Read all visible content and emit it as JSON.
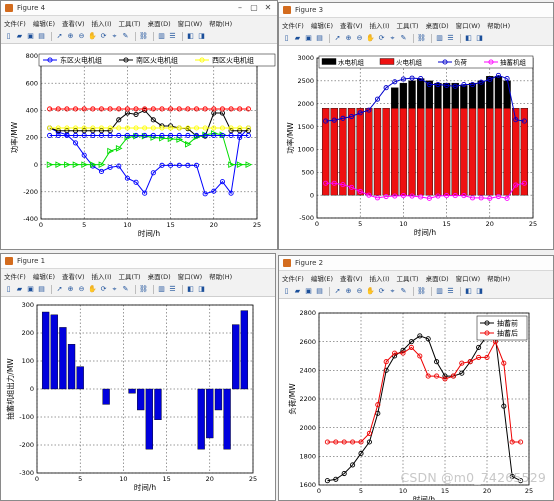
{
  "toolbar_icons": [
    "new-icon",
    "open-icon",
    "save-icon",
    "print-icon",
    "sep",
    "pointer-icon",
    "zoom-in-icon",
    "zoom-out-icon",
    "pan-icon",
    "rotate-icon",
    "datacursor-icon",
    "brush-icon",
    "sep",
    "link-icon",
    "sep",
    "colorbar-icon",
    "legend-icon",
    "sep",
    "hide-tools-icon",
    "show-tools-icon"
  ],
  "toolbar_glyphs": {
    "new-icon": "▯",
    "open-icon": "▰",
    "save-icon": "▣",
    "print-icon": "▤",
    "pointer-icon": "➚",
    "zoom-in-icon": "⊕",
    "zoom-out-icon": "⊖",
    "pan-icon": "✋",
    "rotate-icon": "⟳",
    "datacursor-icon": "⌖",
    "brush-icon": "✎",
    "link-icon": "⛓",
    "colorbar-icon": "▥",
    "legend-icon": "☰",
    "hide-tools-icon": "◧",
    "show-tools-icon": "◨"
  },
  "menu": [
    "文件(F)",
    "编辑(E)",
    "查看(V)",
    "插入(I)",
    "工具(T)",
    "桌面(D)",
    "窗口(W)",
    "帮助(H)"
  ],
  "watermark": "CSDN @m0_74265529",
  "windows": {
    "fig4": {
      "title": "Figure 4"
    },
    "fig3": {
      "title": "Figure 3"
    },
    "fig1": {
      "title": "Figure 1"
    },
    "fig2": {
      "title": "Figure 2"
    }
  },
  "chart_data": [
    {
      "id": "fig4",
      "type": "line",
      "xlabel": "时间/h",
      "ylabel": "功率/MW",
      "xlim": [
        0,
        25
      ],
      "ylim": [
        -400,
        800
      ],
      "xticks": [
        0,
        5,
        10,
        15,
        20,
        25
      ],
      "yticks": [
        -400,
        -200,
        0,
        200,
        400,
        600,
        800
      ],
      "grid": true,
      "legend": {
        "placement": "top",
        "orientation": "horizontal"
      },
      "series": [
        {
          "name": "东区火电机组",
          "color": "#0000ff",
          "marker": "circle",
          "x": [
            1,
            2,
            3,
            4,
            5,
            6,
            7,
            8,
            9,
            10,
            11,
            12,
            13,
            14,
            15,
            16,
            17,
            18,
            19,
            20,
            21,
            22,
            23,
            24
          ],
          "y": [
            270,
            240,
            220,
            160,
            70,
            -10,
            -50,
            -20,
            -10,
            -100,
            -130,
            -210,
            -60,
            -5,
            -5,
            -5,
            -5,
            -5,
            -215,
            -195,
            -125,
            -210,
            200,
            270
          ]
        },
        {
          "name": "南区火电机组",
          "color": "#000000",
          "marker": "circle",
          "x": [
            1,
            2,
            3,
            4,
            5,
            6,
            7,
            8,
            9,
            10,
            11,
            12,
            13,
            14,
            15,
            16,
            17,
            18,
            19,
            20,
            21,
            22,
            23,
            24
          ],
          "y": [
            270,
            250,
            250,
            250,
            250,
            250,
            250,
            250,
            330,
            380,
            370,
            400,
            330,
            285,
            285,
            270,
            265,
            210,
            210,
            380,
            380,
            250,
            250,
            250
          ]
        },
        {
          "name": "西区火电机组",
          "color": "#ffff00",
          "marker": "circle",
          "x": [
            1,
            2,
            3,
            4,
            5,
            6,
            7,
            8,
            9,
            10,
            11,
            12,
            13,
            14,
            15,
            16,
            17,
            18,
            19,
            20,
            21,
            22,
            23,
            24
          ],
          "y": [
            270,
            270,
            270,
            270,
            270,
            270,
            270,
            270,
            270,
            270,
            270,
            270,
            270,
            270,
            270,
            270,
            270,
            270,
            270,
            270,
            270,
            270,
            270,
            270
          ]
        },
        {
          "name": "",
          "color": "#ff0000",
          "marker": "circle",
          "x": [
            1,
            2,
            3,
            4,
            5,
            6,
            7,
            8,
            9,
            10,
            11,
            12,
            13,
            14,
            15,
            16,
            17,
            18,
            19,
            20,
            21,
            22,
            23,
            24
          ],
          "y": [
            410,
            410,
            410,
            410,
            410,
            410,
            410,
            410,
            410,
            410,
            410,
            410,
            410,
            410,
            410,
            410,
            410,
            410,
            410,
            410,
            410,
            410,
            410,
            410
          ]
        },
        {
          "name": "",
          "color": "#00dd00",
          "marker": "triangle",
          "x": [
            1,
            2,
            3,
            4,
            5,
            6,
            7,
            8,
            9,
            10,
            11,
            12,
            13,
            14,
            15,
            16,
            17,
            18,
            19,
            20,
            21,
            22,
            23,
            24
          ],
          "y": [
            0,
            0,
            0,
            0,
            0,
            0,
            0,
            100,
            120,
            200,
            210,
            210,
            200,
            195,
            190,
            185,
            150,
            205,
            220,
            230,
            220,
            0,
            0,
            0
          ]
        },
        {
          "name": "",
          "color": "#0000ff",
          "marker": "circle",
          "x": [
            1,
            2,
            3,
            4,
            5,
            6,
            7,
            8,
            9,
            10,
            11,
            12,
            13,
            14,
            15,
            16,
            17,
            18,
            19,
            20,
            21,
            22,
            23,
            24
          ],
          "y": [
            215,
            215,
            215,
            215,
            215,
            215,
            215,
            215,
            215,
            215,
            215,
            215,
            215,
            215,
            215,
            215,
            215,
            215,
            215,
            215,
            215,
            215,
            215,
            215
          ]
        }
      ]
    },
    {
      "id": "fig3",
      "type": "bar",
      "xlabel": "时间/h",
      "ylabel": "功率/MW",
      "xlim": [
        0,
        25
      ],
      "ylim": [
        -500,
        3000
      ],
      "xticks": [
        0,
        5,
        10,
        15,
        20,
        25
      ],
      "yticks": [
        -500,
        0,
        500,
        1000,
        1500,
        2000,
        2500,
        3000
      ],
      "grid": true,
      "legend": {
        "placement": "top",
        "orientation": "horizontal"
      },
      "x": [
        1,
        2,
        3,
        4,
        5,
        6,
        7,
        8,
        9,
        10,
        11,
        12,
        13,
        14,
        15,
        16,
        17,
        18,
        19,
        20,
        21,
        22,
        23,
        24
      ],
      "stacked_bars": [
        {
          "name": "火电机组",
          "color": "#ee1111",
          "values": [
            1900,
            1900,
            1900,
            1900,
            1900,
            1900,
            1900,
            1900,
            1900,
            1900,
            1900,
            1900,
            1900,
            1900,
            1900,
            1900,
            1900,
            1900,
            1900,
            1900,
            1900,
            1900,
            1900,
            1900
          ]
        },
        {
          "name": "水电机组",
          "color": "#000000",
          "values": [
            0,
            0,
            0,
            0,
            0,
            0,
            0,
            0,
            450,
            550,
            600,
            650,
            600,
            550,
            550,
            550,
            500,
            550,
            600,
            700,
            700,
            600,
            0,
            0
          ]
        }
      ],
      "lines": [
        {
          "name": "负荷",
          "color": "#0000cc",
          "marker": "circle",
          "x": [
            1,
            2,
            3,
            4,
            5,
            6,
            7,
            8,
            9,
            10,
            11,
            12,
            13,
            14,
            15,
            16,
            17,
            18,
            19,
            20,
            21,
            22,
            23,
            24
          ],
          "y": [
            1620,
            1640,
            1680,
            1720,
            1800,
            1860,
            2100,
            2350,
            2480,
            2540,
            2560,
            2550,
            2420,
            2420,
            2400,
            2380,
            2420,
            2420,
            2470,
            2530,
            2620,
            2550,
            1650,
            1620
          ]
        },
        {
          "name": "抽蓄机组",
          "color": "#ff00ff",
          "marker": "circle",
          "x": [
            1,
            2,
            3,
            4,
            5,
            6,
            7,
            8,
            9,
            10,
            11,
            12,
            13,
            14,
            15,
            16,
            17,
            18,
            19,
            20,
            21,
            22,
            23,
            24
          ],
          "y": [
            260,
            260,
            230,
            170,
            80,
            0,
            -60,
            -30,
            -20,
            -10,
            -20,
            -40,
            -70,
            -20,
            -10,
            -10,
            -10,
            -60,
            -60,
            -70,
            -30,
            -70,
            220,
            260
          ]
        }
      ]
    },
    {
      "id": "fig1",
      "type": "bar",
      "xlabel": "时间/h",
      "ylabel": "抽蓄机组出力/MW",
      "xlim": [
        0,
        25
      ],
      "ylim": [
        -300,
        300
      ],
      "xticks": [
        0,
        5,
        10,
        15,
        20,
        25
      ],
      "yticks": [
        -300,
        -200,
        -100,
        0,
        100,
        200,
        300
      ],
      "grid": true,
      "color": "#0000dd",
      "x": [
        1,
        2,
        3,
        4,
        5,
        6,
        7,
        8,
        9,
        10,
        11,
        12,
        13,
        14,
        15,
        16,
        17,
        18,
        19,
        20,
        21,
        22,
        23,
        24
      ],
      "values": [
        275,
        265,
        220,
        160,
        80,
        0,
        0,
        -55,
        0,
        0,
        -15,
        -75,
        -215,
        -110,
        0,
        0,
        0,
        0,
        -215,
        -175,
        -75,
        -215,
        230,
        280
      ]
    },
    {
      "id": "fig2",
      "type": "line",
      "xlabel": "时间/h",
      "ylabel": "负荷/MW",
      "xlim": [
        0,
        25
      ],
      "ylim": [
        1600,
        2800
      ],
      "xticks": [
        0,
        5,
        10,
        15,
        20,
        25
      ],
      "yticks": [
        1600,
        1800,
        2000,
        2200,
        2400,
        2600,
        2800
      ],
      "grid": true,
      "legend": {
        "placement": "top-right",
        "orientation": "vertical"
      },
      "series": [
        {
          "name": "抽蓄前",
          "color": "#000000",
          "marker": "circle",
          "x": [
            1,
            2,
            3,
            4,
            5,
            6,
            7,
            8,
            9,
            10,
            11,
            12,
            13,
            14,
            15,
            16,
            17,
            18,
            19,
            20,
            21,
            22,
            23,
            24
          ],
          "y": [
            1630,
            1640,
            1680,
            1740,
            1820,
            1900,
            2100,
            2400,
            2500,
            2540,
            2600,
            2640,
            2620,
            2460,
            2360,
            2360,
            2380,
            2460,
            2560,
            2640,
            2630,
            2150,
            1660,
            1630
          ]
        },
        {
          "name": "抽蓄后",
          "color": "#ee0000",
          "marker": "circle",
          "x": [
            1,
            2,
            3,
            4,
            5,
            6,
            7,
            8,
            9,
            10,
            11,
            12,
            13,
            14,
            15,
            16,
            17,
            18,
            19,
            20,
            21,
            22,
            23,
            24
          ],
          "y": [
            1900,
            1900,
            1900,
            1900,
            1900,
            1960,
            2160,
            2460,
            2520,
            2520,
            2560,
            2500,
            2360,
            2360,
            2340,
            2360,
            2450,
            2460,
            2490,
            2490,
            2600,
            2450,
            1900,
            1900
          ]
        }
      ]
    }
  ]
}
